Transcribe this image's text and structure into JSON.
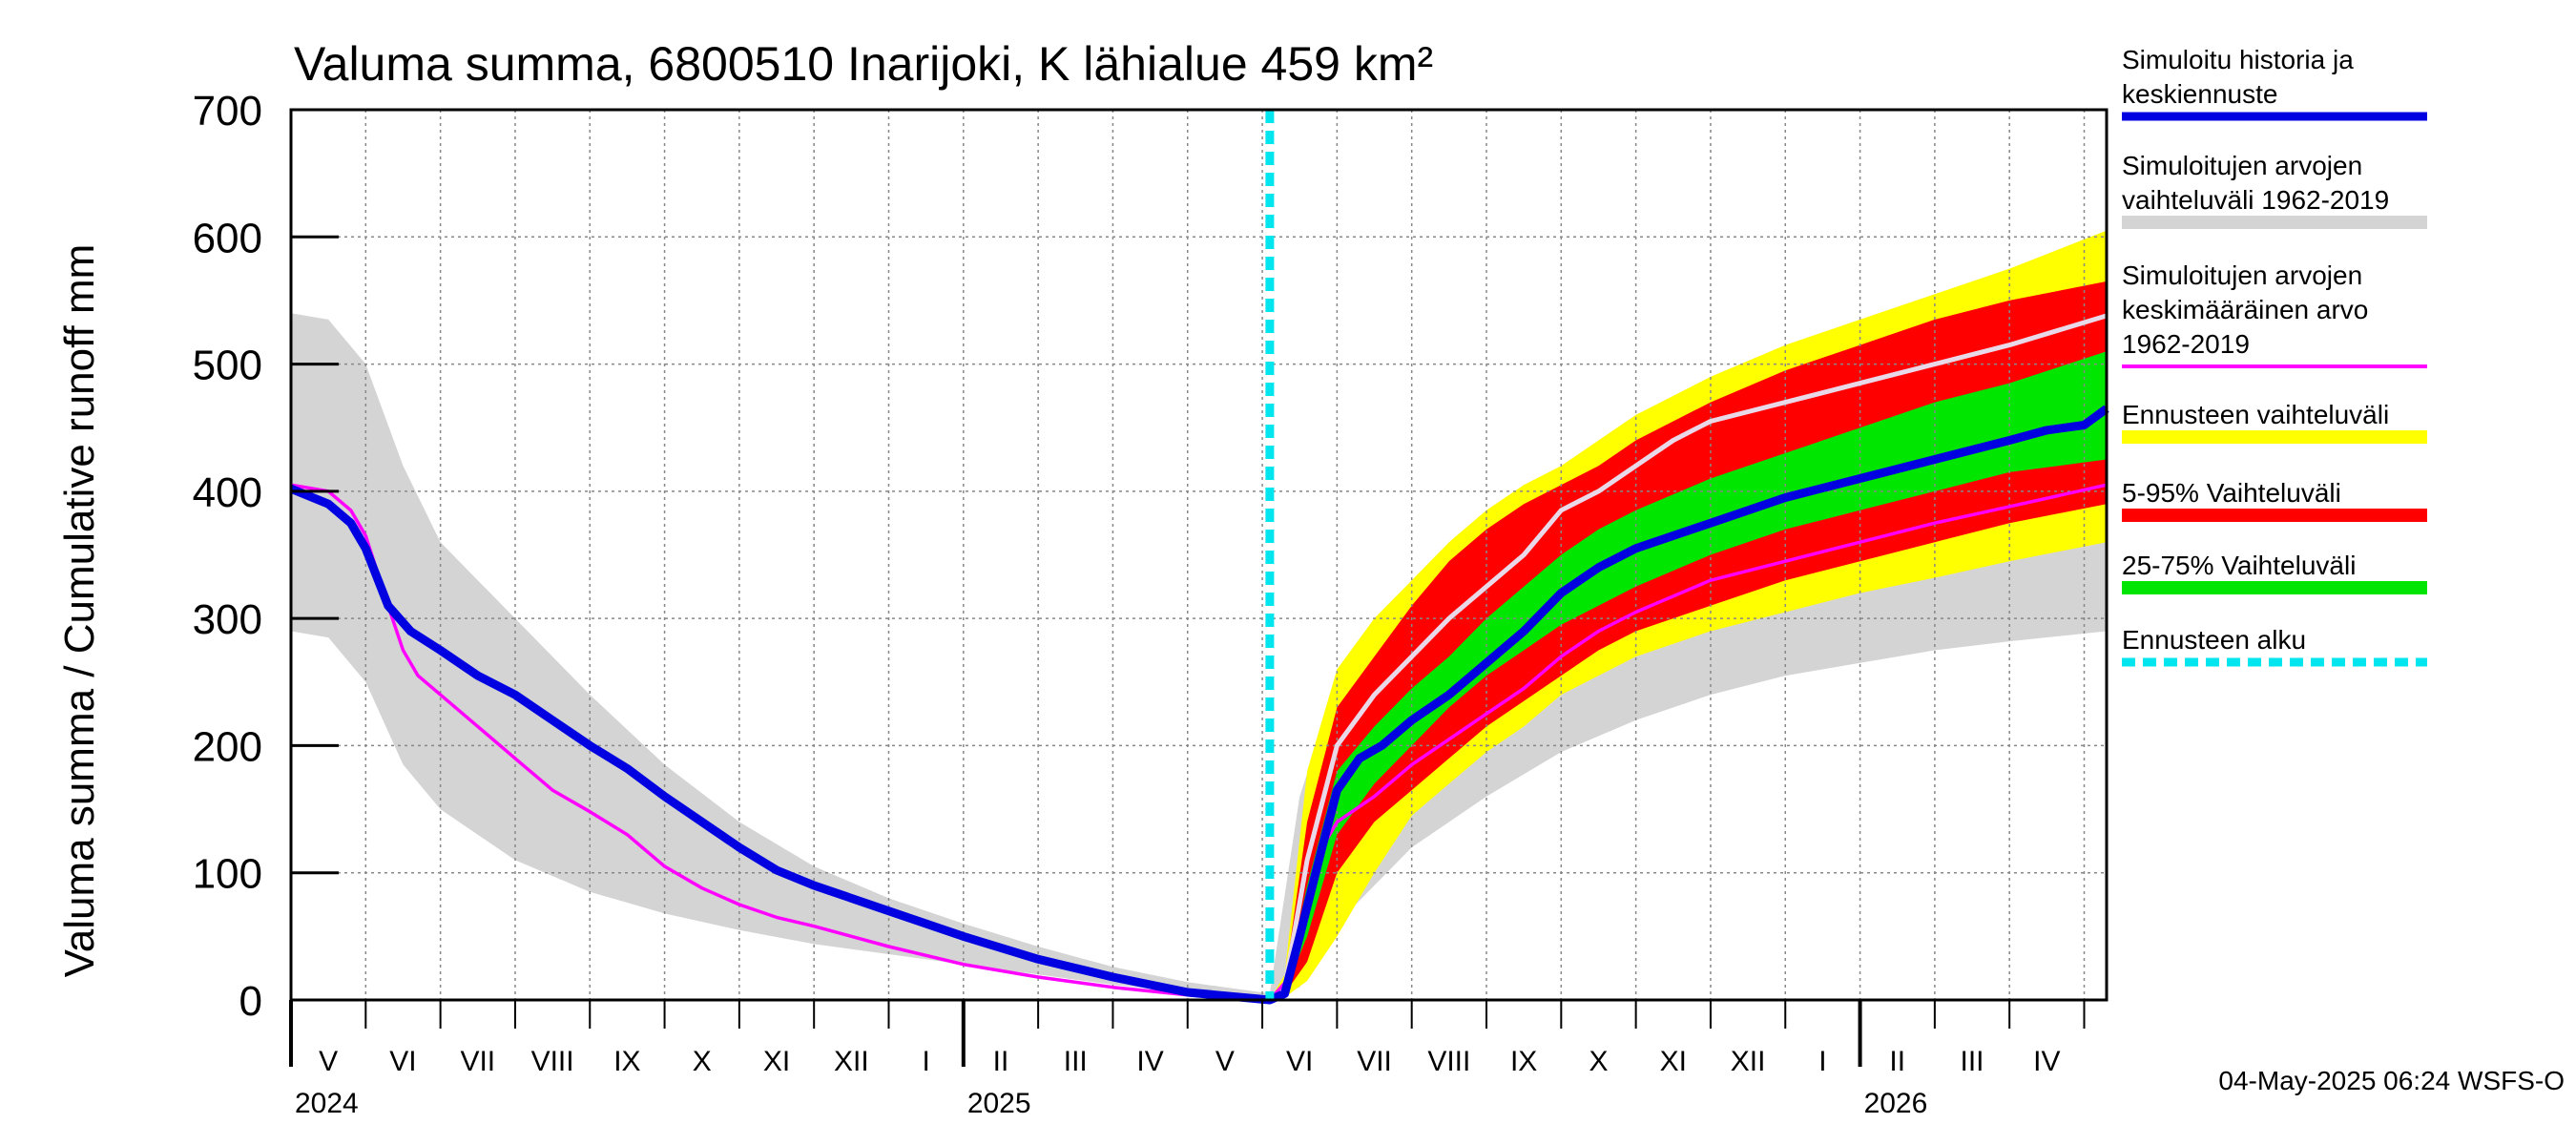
{
  "chart_data": {
    "type": "area",
    "title": "Valuma summa, 6800510 Inarijoki, K lähialue 459 km²",
    "ylabel": "Valuma summa / Cumulative runoff    mm",
    "ylim": [
      0,
      700
    ],
    "yticks": [
      0,
      100,
      200,
      300,
      400,
      500,
      600,
      700
    ],
    "x_unit": "months since 2024-04-01",
    "xlim": [
      0,
      24.3
    ],
    "forecast_start": 13.1,
    "month_ticks": [
      0,
      1,
      2,
      3,
      4,
      5,
      6,
      7,
      8,
      9,
      10,
      11,
      12,
      13,
      14,
      15,
      16,
      17,
      18,
      19,
      20,
      21,
      22,
      23,
      24
    ],
    "year_ticks": [
      0,
      9,
      21
    ],
    "month_labels": [
      {
        "x": 0.5,
        "text": "V"
      },
      {
        "x": 1.5,
        "text": "VI"
      },
      {
        "x": 2.5,
        "text": "VII"
      },
      {
        "x": 3.5,
        "text": "VIII"
      },
      {
        "x": 4.5,
        "text": "IX"
      },
      {
        "x": 5.5,
        "text": "X"
      },
      {
        "x": 6.5,
        "text": "XI"
      },
      {
        "x": 7.5,
        "text": "XII"
      },
      {
        "x": 8.5,
        "text": "I"
      },
      {
        "x": 9.5,
        "text": "II"
      },
      {
        "x": 10.5,
        "text": "III"
      },
      {
        "x": 11.5,
        "text": "IV"
      },
      {
        "x": 12.5,
        "text": "V"
      },
      {
        "x": 13.5,
        "text": "VI"
      },
      {
        "x": 14.5,
        "text": "VII"
      },
      {
        "x": 15.5,
        "text": "VIII"
      },
      {
        "x": 16.5,
        "text": "IX"
      },
      {
        "x": 17.5,
        "text": "X"
      },
      {
        "x": 18.5,
        "text": "XI"
      },
      {
        "x": 19.5,
        "text": "XII"
      },
      {
        "x": 20.5,
        "text": "I"
      },
      {
        "x": 21.5,
        "text": "II"
      },
      {
        "x": 22.5,
        "text": "III"
      },
      {
        "x": 23.5,
        "text": "IV"
      }
    ],
    "year_labels": [
      {
        "x": 0,
        "text": "2024"
      },
      {
        "x": 9,
        "text": "2025"
      },
      {
        "x": 21,
        "text": "2026"
      }
    ],
    "colors": {
      "hist_range": "#d4d4d4",
      "forecast_range": "#ffff00",
      "p5_95": "#ff0000",
      "p25_75": "#00e600",
      "simulated": "#0000e0",
      "mean": "#ff00ff",
      "forecast_start": "#00e5ee",
      "median_forecast": "#e8d8e8"
    },
    "series": {
      "hist_upper": {
        "x": [
          0,
          0.5,
          1.0,
          1.5,
          2.0,
          3.0,
          4.0,
          5.0,
          6.0,
          7.0,
          8.0,
          9.0,
          10.0,
          11.0,
          12.0,
          13.1,
          13.5,
          14.0,
          14.5,
          15.0,
          16.0,
          17.0,
          18.0,
          19.0,
          20.0,
          21.0,
          22.0,
          23.0,
          24.3
        ],
        "y": [
          540,
          535,
          500,
          420,
          360,
          300,
          240,
          185,
          140,
          105,
          80,
          60,
          42,
          26,
          14,
          5,
          160,
          250,
          290,
          320,
          360,
          400,
          440,
          470,
          500,
          520,
          540,
          560,
          600
        ]
      },
      "hist_lower": {
        "x": [
          0,
          0.5,
          1.0,
          1.5,
          2.0,
          3.0,
          4.0,
          5.0,
          6.0,
          7.0,
          8.0,
          9.0,
          10.0,
          11.0,
          12.0,
          13.1,
          13.5,
          14.0,
          14.5,
          15.0,
          16.0,
          17.0,
          18.0,
          19.0,
          20.0,
          21.0,
          22.0,
          23.0,
          24.3
        ],
        "y": [
          290,
          285,
          250,
          185,
          150,
          110,
          85,
          68,
          55,
          44,
          36,
          28,
          20,
          12,
          6,
          0,
          10,
          60,
          90,
          120,
          160,
          195,
          220,
          240,
          255,
          265,
          275,
          282,
          290
        ]
      },
      "forecast_upper": {
        "x": [
          13.1,
          13.3,
          13.6,
          14.0,
          14.5,
          15.0,
          15.5,
          16.0,
          16.5,
          17.0,
          17.5,
          18.0,
          19.0,
          20.0,
          21.0,
          22.0,
          23.0,
          24.3
        ],
        "y": [
          0,
          20,
          180,
          260,
          300,
          330,
          360,
          385,
          405,
          420,
          440,
          460,
          490,
          515,
          535,
          555,
          575,
          605
        ]
      },
      "forecast_lower": {
        "x": [
          13.1,
          13.3,
          13.6,
          14.0,
          14.5,
          15.0,
          15.5,
          16.0,
          16.5,
          17.0,
          17.5,
          18.0,
          19.0,
          20.0,
          21.0,
          22.0,
          23.0,
          24.3
        ],
        "y": [
          0,
          2,
          15,
          50,
          100,
          145,
          170,
          195,
          215,
          240,
          255,
          270,
          290,
          305,
          320,
          332,
          345,
          360
        ]
      },
      "p95": {
        "x": [
          13.1,
          13.3,
          13.6,
          14.0,
          14.5,
          15.0,
          15.5,
          16.0,
          16.5,
          17.0,
          17.5,
          18.0,
          19.0,
          20.0,
          21.0,
          22.0,
          23.0,
          24.3
        ],
        "y": [
          0,
          15,
          140,
          230,
          270,
          310,
          345,
          370,
          390,
          405,
          420,
          440,
          470,
          495,
          515,
          535,
          550,
          565
        ]
      },
      "p5": {
        "x": [
          13.1,
          13.3,
          13.6,
          14.0,
          14.5,
          15.0,
          15.5,
          16.0,
          16.5,
          17.0,
          17.5,
          18.0,
          19.0,
          20.0,
          21.0,
          22.0,
          23.0,
          24.3
        ],
        "y": [
          0,
          5,
          30,
          100,
          140,
          165,
          190,
          215,
          235,
          255,
          275,
          290,
          310,
          330,
          345,
          360,
          375,
          390
        ]
      },
      "p75": {
        "x": [
          13.1,
          13.3,
          13.6,
          14.0,
          14.5,
          15.0,
          15.5,
          16.0,
          16.5,
          17.0,
          17.5,
          18.0,
          19.0,
          20.0,
          21.0,
          22.0,
          23.0,
          24.3
        ],
        "y": [
          0,
          10,
          90,
          180,
          215,
          245,
          270,
          300,
          325,
          350,
          370,
          385,
          410,
          430,
          450,
          470,
          485,
          510
        ]
      },
      "p25": {
        "x": [
          13.1,
          13.3,
          13.6,
          14.0,
          14.5,
          15.0,
          15.5,
          16.0,
          16.5,
          17.0,
          17.5,
          18.0,
          19.0,
          20.0,
          21.0,
          22.0,
          23.0,
          24.3
        ],
        "y": [
          0,
          7,
          50,
          130,
          170,
          200,
          230,
          255,
          275,
          295,
          310,
          325,
          350,
          370,
          385,
          400,
          415,
          425
        ]
      },
      "median": {
        "x": [
          13.1,
          13.3,
          13.6,
          14.0,
          14.5,
          15.0,
          15.5,
          16.0,
          16.5,
          17.0,
          17.5,
          18.0,
          18.5,
          19.0,
          20.0,
          21.0,
          22.0,
          23.0,
          24.3
        ],
        "y": [
          0,
          10,
          110,
          200,
          240,
          270,
          300,
          325,
          350,
          385,
          400,
          420,
          440,
          455,
          470,
          485,
          500,
          515,
          538
        ]
      },
      "simulated": {
        "x": [
          0,
          0.5,
          0.8,
          1.0,
          1.3,
          1.6,
          2.0,
          2.5,
          3.0,
          3.5,
          4.0,
          4.5,
          5.0,
          5.5,
          6.0,
          6.5,
          7.0,
          8.0,
          9.0,
          10.0,
          11.0,
          12.0,
          13.1,
          13.3,
          13.5,
          13.8,
          14.0,
          14.3,
          14.6,
          15.0,
          15.5,
          16.0,
          16.5,
          17.0,
          17.5,
          18.0,
          19.0,
          20.0,
          21.0,
          22.0,
          23.0,
          23.5,
          24.0,
          24.3
        ],
        "y": [
          402,
          390,
          375,
          355,
          310,
          290,
          275,
          255,
          240,
          220,
          200,
          182,
          160,
          140,
          120,
          102,
          90,
          70,
          50,
          32,
          18,
          6,
          0,
          5,
          50,
          120,
          165,
          190,
          200,
          220,
          240,
          265,
          290,
          320,
          340,
          355,
          375,
          395,
          410,
          425,
          440,
          448,
          452,
          465
        ]
      },
      "mean": {
        "x": [
          0,
          0.5,
          0.8,
          1.0,
          1.3,
          1.5,
          1.7,
          2.0,
          2.5,
          3.0,
          3.5,
          4.0,
          4.5,
          5.0,
          5.5,
          6.0,
          6.5,
          7.0,
          8.0,
          9.0,
          10.0,
          11.0,
          12.0,
          13.1,
          13.4,
          13.8,
          14.0,
          14.5,
          15.0,
          15.5,
          16.0,
          16.5,
          17.0,
          17.5,
          18.0,
          19.0,
          20.0,
          21.0,
          22.0,
          23.0,
          24.3
        ],
        "y": [
          405,
          400,
          385,
          365,
          310,
          275,
          255,
          240,
          215,
          190,
          165,
          148,
          130,
          105,
          88,
          75,
          65,
          58,
          42,
          28,
          18,
          10,
          4,
          0,
          20,
          120,
          140,
          160,
          185,
          205,
          225,
          245,
          270,
          290,
          305,
          330,
          345,
          360,
          375,
          388,
          405
        ]
      }
    },
    "legend": [
      {
        "lines": [
          "Simuloitu historia ja",
          "keskiennuste"
        ],
        "swatch": "simulated",
        "style": "line"
      },
      {
        "lines": [
          "Simuloitujen arvojen",
          "vaihteluväli 1962-2019"
        ],
        "swatch": "hist_range",
        "style": "band"
      },
      {
        "lines": [
          "Simuloitujen arvojen",
          "keskimääräinen arvo",
          "   1962-2019"
        ],
        "swatch": "mean",
        "style": "thin"
      },
      {
        "lines": [
          "Ennusteen vaihteluväli"
        ],
        "swatch": "forecast_range",
        "style": "band"
      },
      {
        "lines": [
          "5-95% Vaihteluväli"
        ],
        "swatch": "p5_95",
        "style": "band"
      },
      {
        "lines": [
          "25-75% Vaihteluväli"
        ],
        "swatch": "p25_75",
        "style": "band"
      },
      {
        "lines": [
          "Ennusteen alku"
        ],
        "swatch": "forecast_start",
        "style": "dashed"
      }
    ],
    "timestamp": "04-May-2025 06:24 WSFS-O"
  }
}
